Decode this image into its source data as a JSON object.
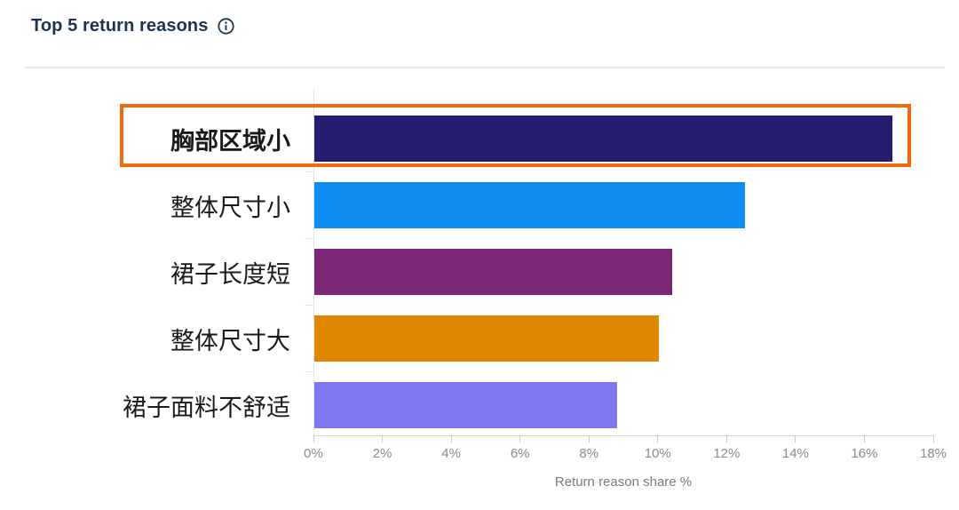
{
  "header": {
    "title": "Top 5 return reasons"
  },
  "icons": {
    "info": "circled-i"
  },
  "colors": {
    "title": "#1c3353",
    "axis_text": "#8b8b8b",
    "divider": "#e8e8e8"
  },
  "chart_data": {
    "type": "bar",
    "orientation": "horizontal",
    "title": "Top 5 return reasons",
    "categories": [
      "胸部区域小",
      "整体尺寸小",
      "裙子长度短",
      "整体尺寸大",
      "裙子面料不舒适"
    ],
    "values": [
      16.8,
      12.5,
      10.4,
      10,
      8.8
    ],
    "value_unit": "%",
    "colors": [
      "#241d70",
      "#0d8df2",
      "#7b2775",
      "#e08700",
      "#7e78f0"
    ],
    "highlight": {
      "index": 0,
      "category": "胸部区域小",
      "border_color": "#f2690d"
    },
    "xlabel": "Return reason share %",
    "xlim": [
      0,
      18
    ],
    "xticks": [
      "0%",
      "2%",
      "4%",
      "6%",
      "8%",
      "10%",
      "12%",
      "14%",
      "16%",
      "18%"
    ],
    "grid": false,
    "legend": false
  }
}
